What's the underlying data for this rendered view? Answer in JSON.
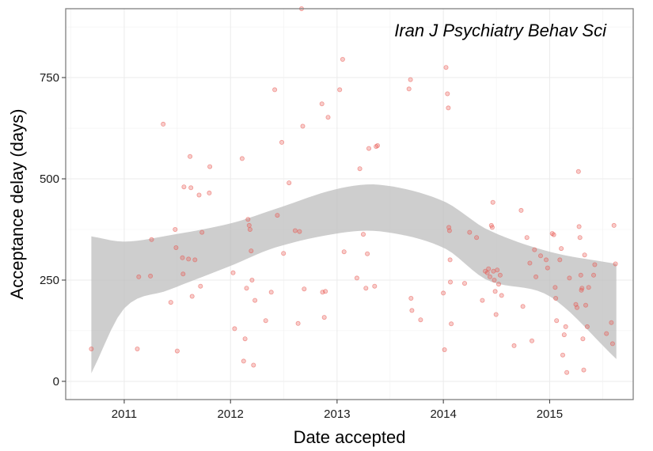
{
  "chart_data": {
    "type": "scatter",
    "title": "",
    "annotation": "Iran J Psychiatry Behav Sci",
    "xlabel": "Date accepted",
    "ylabel": "Acceptance delay (days)",
    "xlim": [
      "2010-06-14",
      "2015-10-15"
    ],
    "ylim": [
      -45,
      920
    ],
    "x_ticks": [
      "2011",
      "2012",
      "2013",
      "2014",
      "2015"
    ],
    "y_ticks": [
      0,
      250,
      500,
      750
    ],
    "grid": true,
    "smooth": {
      "method": "loess",
      "x": [
        "2010-09-10",
        "2011-01-01",
        "2011-06-01",
        "2012-01-01",
        "2012-06-01",
        "2013-01-01",
        "2013-06-01",
        "2014-01-01",
        "2014-06-01",
        "2015-01-01",
        "2015-08-18"
      ],
      "fit": [
        190,
        265,
        295,
        340,
        375,
        410,
        425,
        390,
        320,
        265,
        175
      ],
      "lower": [
        20,
        180,
        225,
        285,
        330,
        365,
        370,
        330,
        250,
        210,
        55
      ],
      "upper": [
        358,
        345,
        360,
        390,
        425,
        475,
        485,
        445,
        375,
        320,
        290
      ]
    },
    "series": [
      {
        "color": "#e8534c",
        "points": [
          {
            "x": "2010-09-10",
            "y": 80
          },
          {
            "x": "2011-02-15",
            "y": 80
          },
          {
            "x": "2011-02-20",
            "y": 258
          },
          {
            "x": "2011-04-01",
            "y": 260
          },
          {
            "x": "2011-04-05",
            "y": 350
          },
          {
            "x": "2011-05-15",
            "y": 635
          },
          {
            "x": "2011-06-10",
            "y": 195
          },
          {
            "x": "2011-06-25",
            "y": 375
          },
          {
            "x": "2011-06-28",
            "y": 330
          },
          {
            "x": "2011-07-02",
            "y": 75
          },
          {
            "x": "2011-07-20",
            "y": 305
          },
          {
            "x": "2011-07-22",
            "y": 265
          },
          {
            "x": "2011-07-25",
            "y": 480
          },
          {
            "x": "2011-08-10",
            "y": 302
          },
          {
            "x": "2011-08-15",
            "y": 555
          },
          {
            "x": "2011-08-18",
            "y": 478
          },
          {
            "x": "2011-08-22",
            "y": 210
          },
          {
            "x": "2011-09-01",
            "y": 300
          },
          {
            "x": "2011-09-15",
            "y": 460
          },
          {
            "x": "2011-09-20",
            "y": 235
          },
          {
            "x": "2011-09-25",
            "y": 368
          },
          {
            "x": "2011-10-20",
            "y": 465
          },
          {
            "x": "2011-10-22",
            "y": 530
          },
          {
            "x": "2012-01-10",
            "y": 268
          },
          {
            "x": "2012-01-15",
            "y": 130
          },
          {
            "x": "2012-02-10",
            "y": 550
          },
          {
            "x": "2012-02-15",
            "y": 50
          },
          {
            "x": "2012-02-20",
            "y": 105
          },
          {
            "x": "2012-02-25",
            "y": 230
          },
          {
            "x": "2012-03-01",
            "y": 400
          },
          {
            "x": "2012-03-05",
            "y": 385
          },
          {
            "x": "2012-03-08",
            "y": 375
          },
          {
            "x": "2012-03-12",
            "y": 322
          },
          {
            "x": "2012-03-15",
            "y": 250
          },
          {
            "x": "2012-03-20",
            "y": 40
          },
          {
            "x": "2012-03-25",
            "y": 200
          },
          {
            "x": "2012-05-01",
            "y": 150
          },
          {
            "x": "2012-05-20",
            "y": 220
          },
          {
            "x": "2012-06-01",
            "y": 720
          },
          {
            "x": "2012-06-10",
            "y": 410
          },
          {
            "x": "2012-06-25",
            "y": 590
          },
          {
            "x": "2012-07-01",
            "y": 316
          },
          {
            "x": "2012-07-20",
            "y": 490
          },
          {
            "x": "2012-08-10",
            "y": 372
          },
          {
            "x": "2012-08-20",
            "y": 143
          },
          {
            "x": "2012-08-25",
            "y": 370
          },
          {
            "x": "2012-09-01",
            "y": 920
          },
          {
            "x": "2012-09-05",
            "y": 630
          },
          {
            "x": "2012-09-10",
            "y": 228
          },
          {
            "x": "2012-11-10",
            "y": 685
          },
          {
            "x": "2012-11-12",
            "y": 220
          },
          {
            "x": "2012-11-18",
            "y": 158
          },
          {
            "x": "2012-11-22",
            "y": 222
          },
          {
            "x": "2012-12-01",
            "y": 652
          },
          {
            "x": "2013-01-10",
            "y": 720
          },
          {
            "x": "2013-01-20",
            "y": 795
          },
          {
            "x": "2013-01-25",
            "y": 320
          },
          {
            "x": "2013-03-10",
            "y": 255
          },
          {
            "x": "2013-03-20",
            "y": 525
          },
          {
            "x": "2013-04-01",
            "y": 363
          },
          {
            "x": "2013-04-10",
            "y": 230
          },
          {
            "x": "2013-04-15",
            "y": 315
          },
          {
            "x": "2013-04-20",
            "y": 575
          },
          {
            "x": "2013-05-10",
            "y": 235
          },
          {
            "x": "2013-05-15",
            "y": 580
          },
          {
            "x": "2013-05-20",
            "y": 582
          },
          {
            "x": "2013-09-05",
            "y": 722
          },
          {
            "x": "2013-09-10",
            "y": 745
          },
          {
            "x": "2013-09-12",
            "y": 205
          },
          {
            "x": "2013-09-15",
            "y": 175
          },
          {
            "x": "2013-10-15",
            "y": 152
          },
          {
            "x": "2014-01-01",
            "y": 218
          },
          {
            "x": "2014-01-05",
            "y": 78
          },
          {
            "x": "2014-01-10",
            "y": 775
          },
          {
            "x": "2014-01-15",
            "y": 710
          },
          {
            "x": "2014-01-18",
            "y": 675
          },
          {
            "x": "2014-01-20",
            "y": 380
          },
          {
            "x": "2014-01-22",
            "y": 372
          },
          {
            "x": "2014-01-24",
            "y": 300
          },
          {
            "x": "2014-01-25",
            "y": 245
          },
          {
            "x": "2014-01-28",
            "y": 142
          },
          {
            "x": "2014-03-15",
            "y": 242
          },
          {
            "x": "2014-04-01",
            "y": 368
          },
          {
            "x": "2014-04-25",
            "y": 355
          },
          {
            "x": "2014-05-15",
            "y": 200
          },
          {
            "x": "2014-05-25",
            "y": 272
          },
          {
            "x": "2014-06-01",
            "y": 268
          },
          {
            "x": "2014-06-05",
            "y": 278
          },
          {
            "x": "2014-06-10",
            "y": 258
          },
          {
            "x": "2014-06-15",
            "y": 385
          },
          {
            "x": "2014-06-18",
            "y": 380
          },
          {
            "x": "2014-06-20",
            "y": 442
          },
          {
            "x": "2014-06-22",
            "y": 272
          },
          {
            "x": "2014-06-25",
            "y": 250
          },
          {
            "x": "2014-06-28",
            "y": 222
          },
          {
            "x": "2014-07-01",
            "y": 165
          },
          {
            "x": "2014-07-05",
            "y": 275
          },
          {
            "x": "2014-07-10",
            "y": 240
          },
          {
            "x": "2014-07-15",
            "y": 262
          },
          {
            "x": "2014-07-20",
            "y": 212
          },
          {
            "x": "2014-09-01",
            "y": 88
          },
          {
            "x": "2014-09-25",
            "y": 422
          },
          {
            "x": "2014-10-01",
            "y": 185
          },
          {
            "x": "2014-10-15",
            "y": 355
          },
          {
            "x": "2014-10-25",
            "y": 292
          },
          {
            "x": "2014-11-01",
            "y": 100
          },
          {
            "x": "2014-11-10",
            "y": 325
          },
          {
            "x": "2014-11-15",
            "y": 258
          },
          {
            "x": "2014-12-01",
            "y": 310
          },
          {
            "x": "2014-12-20",
            "y": 300
          },
          {
            "x": "2014-12-25",
            "y": 280
          },
          {
            "x": "2015-01-10",
            "y": 365
          },
          {
            "x": "2015-01-15",
            "y": 362
          },
          {
            "x": "2015-01-20",
            "y": 232
          },
          {
            "x": "2015-01-22",
            "y": 205
          },
          {
            "x": "2015-01-25",
            "y": 150
          },
          {
            "x": "2015-02-05",
            "y": 300
          },
          {
            "x": "2015-02-10",
            "y": 328
          },
          {
            "x": "2015-02-15",
            "y": 65
          },
          {
            "x": "2015-02-20",
            "y": 115
          },
          {
            "x": "2015-02-25",
            "y": 135
          },
          {
            "x": "2015-03-01",
            "y": 22
          },
          {
            "x": "2015-03-10",
            "y": 255
          },
          {
            "x": "2015-04-01",
            "y": 190
          },
          {
            "x": "2015-04-05",
            "y": 182
          },
          {
            "x": "2015-04-10",
            "y": 518
          },
          {
            "x": "2015-04-12",
            "y": 382
          },
          {
            "x": "2015-04-15",
            "y": 355
          },
          {
            "x": "2015-04-18",
            "y": 262
          },
          {
            "x": "2015-04-20",
            "y": 225
          },
          {
            "x": "2015-04-22",
            "y": 230
          },
          {
            "x": "2015-04-25",
            "y": 105
          },
          {
            "x": "2015-04-28",
            "y": 28
          },
          {
            "x": "2015-05-01",
            "y": 312
          },
          {
            "x": "2015-05-05",
            "y": 188
          },
          {
            "x": "2015-05-10",
            "y": 135
          },
          {
            "x": "2015-05-15",
            "y": 232
          },
          {
            "x": "2015-06-01",
            "y": 262
          },
          {
            "x": "2015-06-05",
            "y": 288
          },
          {
            "x": "2015-07-15",
            "y": 118
          },
          {
            "x": "2015-08-01",
            "y": 145
          },
          {
            "x": "2015-08-05",
            "y": 93
          },
          {
            "x": "2015-08-10",
            "y": 385
          },
          {
            "x": "2015-08-15",
            "y": 290
          }
        ]
      }
    ]
  }
}
